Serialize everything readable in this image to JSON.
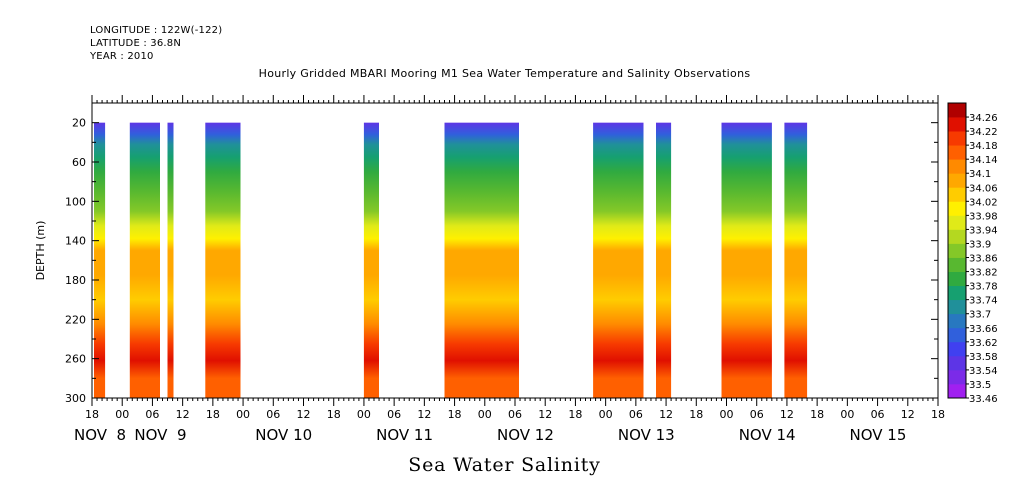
{
  "header": {
    "longitude": "LONGITUDE : 122W(-122)",
    "latitude": "LATITUDE : 36.8N",
    "year": "YEAR : 2010"
  },
  "chart_data": {
    "type": "heatmap",
    "title": "Hourly Gridded MBARI Mooring M1 Sea Water Temperature and Salinity Observations",
    "subtitle": "Sea Water Salinity",
    "ylabel": "DEPTH (m)",
    "xlabel": "",
    "x_unit": "hours since 2010-11-08 18:00",
    "x_range": [
      0,
      168
    ],
    "ylim": [
      0,
      300
    ],
    "y_inverted": true,
    "y_ticks": [
      20,
      60,
      100,
      140,
      180,
      220,
      260,
      300
    ],
    "x_tick_labels": [
      "18",
      "00",
      "06",
      "12",
      "18",
      "00",
      "06",
      "12",
      "18",
      "00",
      "06",
      "12",
      "18",
      "00",
      "06",
      "12",
      "18",
      "00",
      "06",
      "12",
      "18",
      "00",
      "06",
      "12",
      "18",
      "00",
      "06",
      "12",
      "18"
    ],
    "day_labels": [
      {
        "text": "NOV  8",
        "x": 0
      },
      {
        "text": "NOV  9",
        "x": 12
      },
      {
        "text": "NOV 10",
        "x": 36
      },
      {
        "text": "NOV 11",
        "x": 60
      },
      {
        "text": "NOV 12",
        "x": 84
      },
      {
        "text": "NOV 13",
        "x": 108
      },
      {
        "text": "NOV 14",
        "x": 132
      },
      {
        "text": "NOV 15",
        "x": 154
      }
    ],
    "colorbar": {
      "levels": [
        33.46,
        33.5,
        33.54,
        33.58,
        33.62,
        33.66,
        33.7,
        33.74,
        33.78,
        33.82,
        33.86,
        33.9,
        33.94,
        33.98,
        34.02,
        34.06,
        34.1,
        34.14,
        34.18,
        34.22,
        34.26
      ],
      "colors": [
        "#a020f0",
        "#7b2be8",
        "#5d35e6",
        "#4040f0",
        "#3060dc",
        "#2878c0",
        "#20909a",
        "#16a070",
        "#30aa40",
        "#58b830",
        "#84c828",
        "#b4d820",
        "#e0ea18",
        "#fff000",
        "#ffcc00",
        "#ffa800",
        "#ff8a00",
        "#ff6000",
        "#f73a00",
        "#e01000",
        "#b00000"
      ]
    },
    "data_blocks_hours": [
      [
        0.4,
        2.6
      ],
      [
        7.5,
        13.5
      ],
      [
        15.0,
        16.2
      ],
      [
        22.5,
        29.5
      ],
      [
        54.0,
        57.0
      ],
      [
        70.0,
        84.8
      ],
      [
        99.5,
        109.5
      ],
      [
        112.0,
        115.0
      ],
      [
        125.0,
        135.0
      ],
      [
        137.5,
        142.0
      ]
    ],
    "depth_profile": [
      {
        "depth": 0,
        "value": 33.56
      },
      {
        "depth": 20,
        "value": 33.56
      },
      {
        "depth": 32,
        "value": 33.62
      },
      {
        "depth": 42,
        "value": 33.7
      },
      {
        "depth": 55,
        "value": 33.76
      },
      {
        "depth": 70,
        "value": 33.8
      },
      {
        "depth": 90,
        "value": 33.84
      },
      {
        "depth": 110,
        "value": 33.88
      },
      {
        "depth": 125,
        "value": 33.95
      },
      {
        "depth": 138,
        "value": 34.0
      },
      {
        "depth": 150,
        "value": 34.06
      },
      {
        "depth": 175,
        "value": 34.07
      },
      {
        "depth": 200,
        "value": 34.05
      },
      {
        "depth": 225,
        "value": 34.1
      },
      {
        "depth": 245,
        "value": 34.18
      },
      {
        "depth": 262,
        "value": 34.23
      },
      {
        "depth": 280,
        "value": 34.16
      },
      {
        "depth": 300,
        "value": 34.14
      }
    ]
  }
}
